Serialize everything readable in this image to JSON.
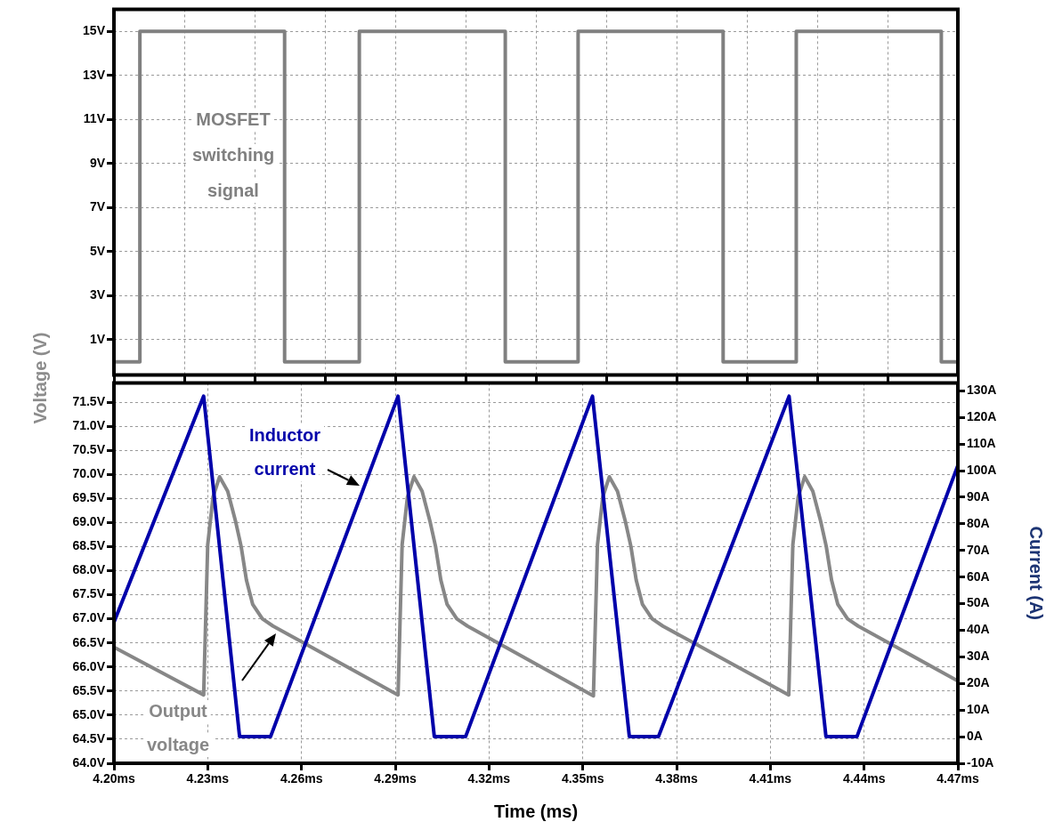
{
  "chart_data": [
    {
      "type": "line",
      "xlim": [
        4.2,
        4.47
      ],
      "ylim": [
        -0.6,
        16
      ],
      "tick_labels": "y",
      "grid": true,
      "marker": "none",
      "legend": false,
      "xticks": [
        {
          "value": 4.2,
          "label": null
        },
        {
          "value": 4.2225,
          "label": null
        },
        {
          "value": 4.245,
          "label": null
        },
        {
          "value": 4.2675,
          "label": null
        },
        {
          "value": 4.29,
          "label": null
        },
        {
          "value": 4.3125,
          "label": null
        },
        {
          "value": 4.335,
          "label": null
        },
        {
          "value": 4.3575,
          "label": null
        },
        {
          "value": 4.38,
          "label": null
        },
        {
          "value": 4.4025,
          "label": null
        },
        {
          "value": 4.425,
          "label": null
        },
        {
          "value": 4.4475,
          "label": null
        },
        {
          "value": 4.47,
          "label": null
        }
      ],
      "yticks": [
        {
          "value": 15,
          "label": "15V"
        },
        {
          "value": 13,
          "label": "13V"
        },
        {
          "value": 11,
          "label": "11V"
        },
        {
          "value": 9,
          "label": "9V"
        },
        {
          "value": 7,
          "label": "7V"
        },
        {
          "value": 5,
          "label": "5V"
        },
        {
          "value": 3,
          "label": "3V"
        },
        {
          "value": 1,
          "label": "1V"
        }
      ],
      "series": [
        {
          "name": "MOSFET switching signal",
          "color": "#808080",
          "x": [
            4.2,
            4.2083,
            4.2083,
            4.2546,
            4.2546,
            4.2785,
            4.2785,
            4.3252,
            4.3252,
            4.3485,
            4.3485,
            4.3949,
            4.3949,
            4.4183,
            4.4183,
            4.4647,
            4.4647,
            4.47
          ],
          "values": [
            0,
            0,
            15,
            15,
            0,
            0,
            15,
            15,
            0,
            0,
            15,
            15,
            0,
            0,
            15,
            15,
            0,
            0
          ]
        }
      ]
    },
    {
      "type": "line",
      "xlabel": "Time (ms)",
      "ylabel": "Voltage (V)",
      "y2label": "Current (A)",
      "xlim": [
        4.2,
        4.47
      ],
      "ylim": [
        64,
        71.9
      ],
      "y2lim": [
        -10,
        133
      ],
      "grid": true,
      "marker": "none",
      "legend": false,
      "xticks": [
        {
          "value": 4.2,
          "label": "4.20ms"
        },
        {
          "value": 4.23,
          "label": "4.23ms"
        },
        {
          "value": 4.26,
          "label": "4.26ms"
        },
        {
          "value": 4.29,
          "label": "4.29ms"
        },
        {
          "value": 4.32,
          "label": "4.32ms"
        },
        {
          "value": 4.35,
          "label": "4.35ms"
        },
        {
          "value": 4.38,
          "label": "4.38ms"
        },
        {
          "value": 4.41,
          "label": "4.41ms"
        },
        {
          "value": 4.44,
          "label": "4.44ms"
        },
        {
          "value": 4.47,
          "label": "4.47ms"
        }
      ],
      "yticks": [
        {
          "value": 71.5,
          "label": "71.5V"
        },
        {
          "value": 71,
          "label": "71.0V"
        },
        {
          "value": 70.5,
          "label": "70.5V"
        },
        {
          "value": 70,
          "label": "70.0V"
        },
        {
          "value": 69.5,
          "label": "69.5V"
        },
        {
          "value": 69,
          "label": "69.0V"
        },
        {
          "value": 68.5,
          "label": "68.5V"
        },
        {
          "value": 68,
          "label": "68.0V"
        },
        {
          "value": 67.5,
          "label": "67.5V"
        },
        {
          "value": 67,
          "label": "67.0V"
        },
        {
          "value": 66.5,
          "label": "66.5V"
        },
        {
          "value": 66,
          "label": "66.0V"
        },
        {
          "value": 65.5,
          "label": "65.5V"
        },
        {
          "value": 65,
          "label": "65.0V"
        },
        {
          "value": 64.5,
          "label": "64.5V"
        },
        {
          "value": 64,
          "label": "64.0V"
        }
      ],
      "y2ticks": [
        {
          "value": 130,
          "label": "130A"
        },
        {
          "value": 120,
          "label": "120A"
        },
        {
          "value": 110,
          "label": "110A"
        },
        {
          "value": 100,
          "label": "100A"
        },
        {
          "value": 90,
          "label": "90A"
        },
        {
          "value": 80,
          "label": "80A"
        },
        {
          "value": 70,
          "label": "70A"
        },
        {
          "value": 60,
          "label": "60A"
        },
        {
          "value": 50,
          "label": "50A"
        },
        {
          "value": 40,
          "label": "40A"
        },
        {
          "value": 30,
          "label": "30A"
        },
        {
          "value": 20,
          "label": "20A"
        },
        {
          "value": 10,
          "label": "10A"
        },
        {
          "value": 0,
          "label": "0A"
        },
        {
          "value": -10,
          "label": "-10A"
        }
      ],
      "series": [
        {
          "name": "Output voltage",
          "color": "#878787",
          "x": [
            4.2,
            4.2287,
            4.23,
            4.2317,
            4.2338,
            4.2364,
            4.239,
            4.2407,
            4.2424,
            4.2444,
            4.2475,
            4.2509,
            4.2909,
            4.2922,
            4.2939,
            4.296,
            4.2986,
            4.3012,
            4.3029,
            4.3046,
            4.3066,
            4.3097,
            4.3131,
            4.3534,
            4.3547,
            4.3564,
            4.3585,
            4.3611,
            4.3637,
            4.3654,
            4.3671,
            4.3691,
            4.3722,
            4.3756,
            4.4159,
            4.4172,
            4.4189,
            4.421,
            4.4236,
            4.4262,
            4.4279,
            4.4296,
            4.4316,
            4.4347,
            4.4381,
            4.47
          ],
          "values": [
            66.41,
            65.42,
            68.54,
            69.53,
            69.95,
            69.65,
            69.0,
            68.5,
            67.8,
            67.3,
            67.0,
            66.85,
            65.42,
            68.54,
            69.53,
            69.95,
            69.65,
            69.0,
            68.5,
            67.8,
            67.3,
            67.0,
            66.85,
            65.4,
            68.54,
            69.53,
            69.95,
            69.65,
            69.0,
            68.5,
            67.8,
            67.3,
            67.0,
            66.85,
            65.42,
            68.54,
            69.53,
            69.95,
            69.65,
            69.0,
            68.5,
            67.8,
            67.3,
            67.0,
            66.85,
            65.71
          ]
        },
        {
          "name": "Inductor current",
          "color": "#0000aa",
          "axis": "y2",
          "x": [
            4.2,
            4.2287,
            4.2402,
            4.2501,
            4.2909,
            4.3025,
            4.3125,
            4.3531,
            4.3649,
            4.3742,
            4.416,
            4.4278,
            4.4377,
            4.47
          ],
          "values": [
            43,
            128,
            0,
            0,
            128,
            0,
            0,
            128,
            0,
            0,
            128,
            0,
            0,
            102
          ]
        }
      ]
    }
  ]
}
